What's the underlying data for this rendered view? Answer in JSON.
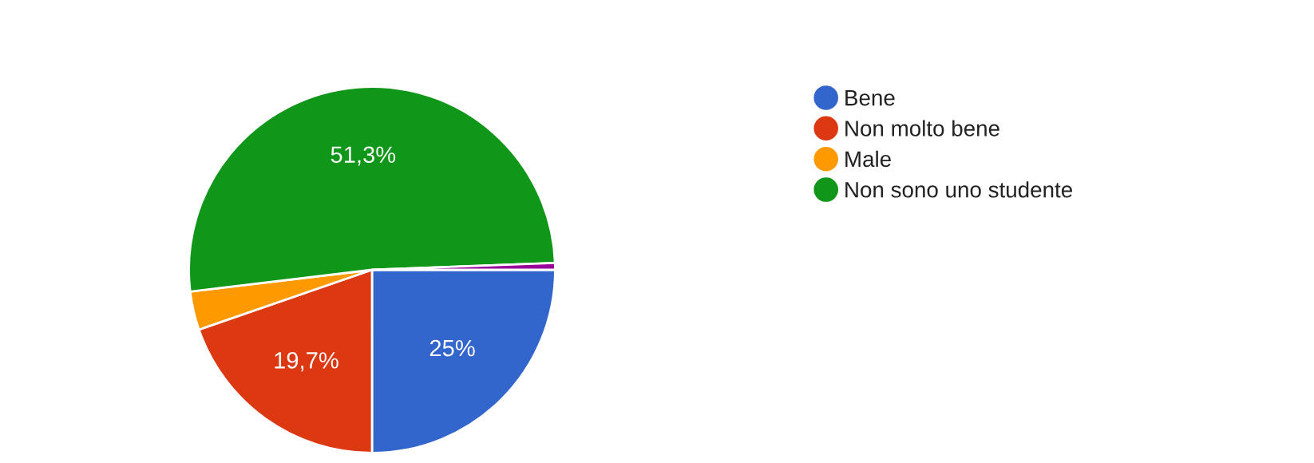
{
  "chart_data": {
    "type": "pie",
    "categories": [
      "Bene",
      "Non molto bene",
      "Male",
      "Non sono uno studente",
      null
    ],
    "values": [
      25,
      19.7,
      3.4,
      51.3,
      0.6
    ],
    "colors": [
      "#3366cc",
      "#dc3912",
      "#ff9900",
      "#109618",
      "#990099"
    ],
    "value_labels": [
      "25%",
      "19,7%",
      null,
      "51,3%",
      null
    ],
    "legend": "right"
  }
}
